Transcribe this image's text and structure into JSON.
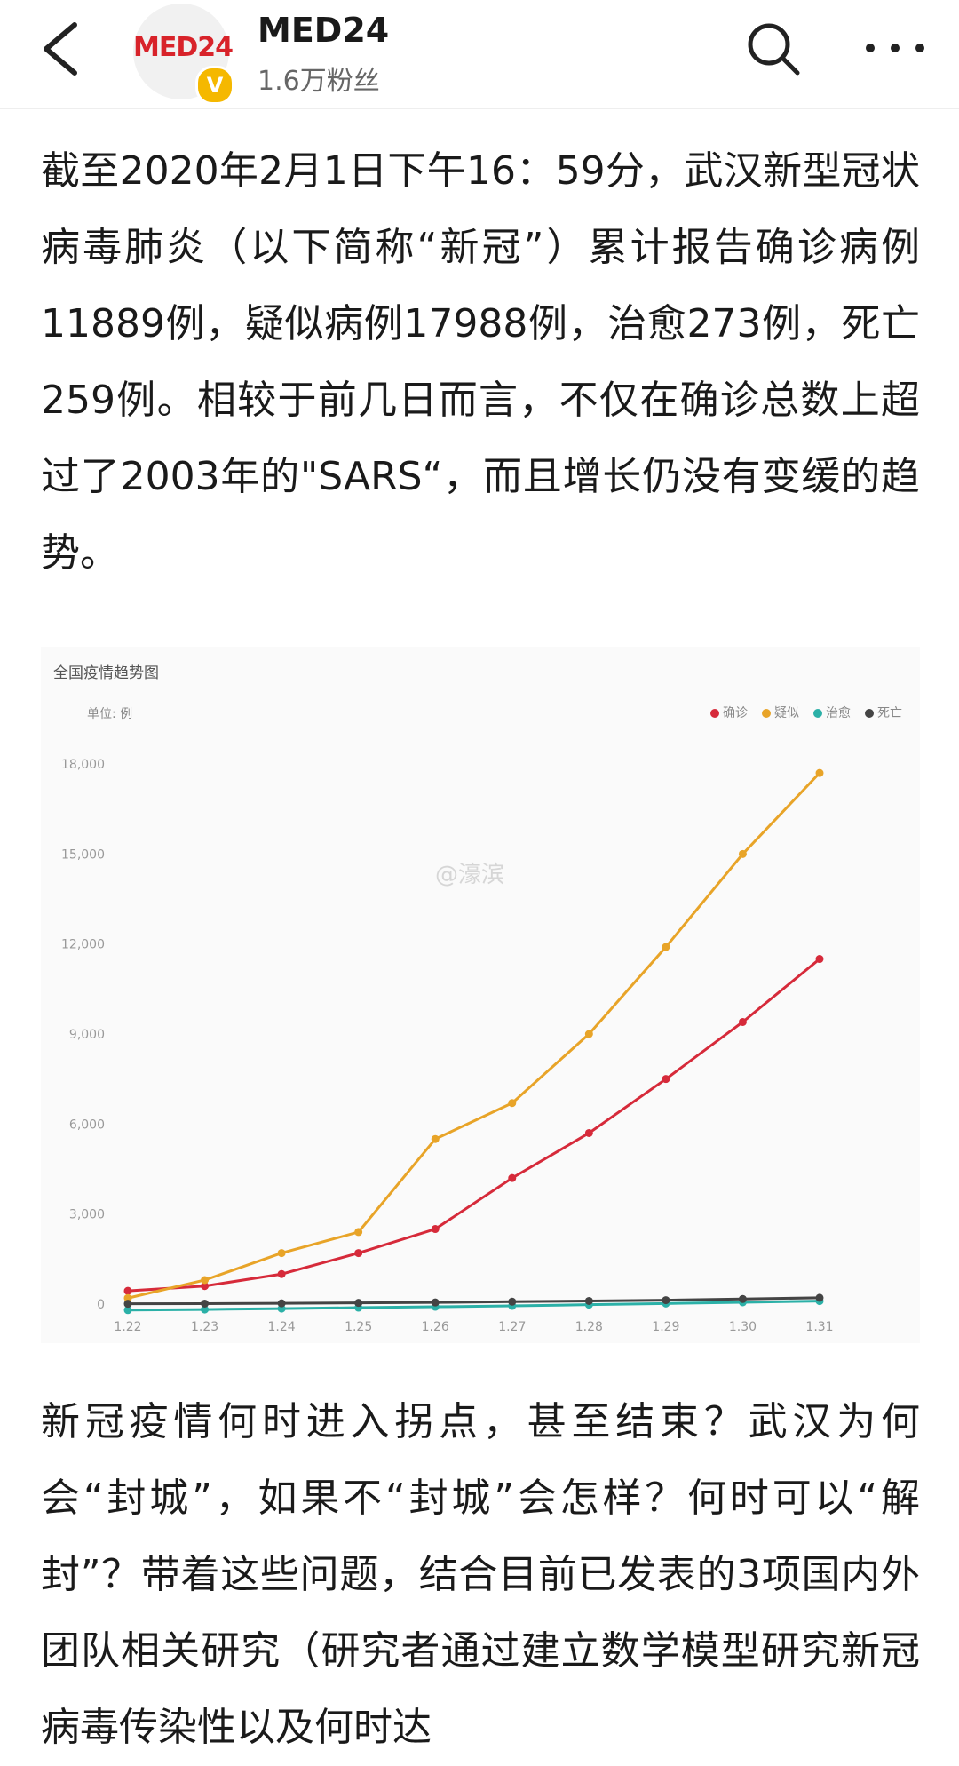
{
  "header": {
    "name": "MED24",
    "fans": "1.6万粉丝",
    "avatar_logo": "MED24",
    "verified_mark": "V"
  },
  "article": {
    "paragraph1": "截至2020年2月1日下午16：59分，武汉新型冠状病毒肺炎（以下简称“新冠”）累计报告确诊病例11889例，疑似病例17988例，治愈273例，死亡259例。相较于前几日而言，不仅在确诊总数上超过了2003年的\"SARS“，而且增长仍没有变缓的趋势。",
    "paragraph2": "新冠疫情何时进入拐点，甚至结束？武汉为何会“封城”，如果不“封城”会怎样？何时可以“解封”？带着这些问题，结合目前已发表的3项国内外团队相关研究（研究者通过建立数学模型研究新冠病毒传染性以及何时达"
  },
  "chart_data": {
    "type": "line",
    "title": "全国疫情趋势图",
    "unit": "单位: 例",
    "watermark": "@濠滨",
    "categories": [
      "1.22",
      "1.23",
      "1.24",
      "1.25",
      "1.26",
      "1.27",
      "1.28",
      "1.29",
      "1.30",
      "1.31"
    ],
    "ylim": [
      0,
      18000
    ],
    "yticks": [
      0,
      3000,
      6000,
      9000,
      12000,
      15000,
      18000
    ],
    "ytick_labels": [
      "0",
      "3,000",
      "6,000",
      "9,000",
      "12,000",
      "15,000",
      "18,000"
    ],
    "legend_position": "top-right",
    "grid": false,
    "series": [
      {
        "name": "确诊",
        "color": "#d62a3a",
        "values": [
          440,
          600,
          1000,
          1700,
          2500,
          4200,
          5700,
          7500,
          9400,
          11500
        ]
      },
      {
        "name": "疑似",
        "color": "#e8a428",
        "values": [
          200,
          800,
          1700,
          2400,
          5500,
          6700,
          9000,
          11900,
          15000,
          17700
        ]
      },
      {
        "name": "治愈",
        "color": "#2bb0a7",
        "values": [
          -200,
          -180,
          -150,
          -120,
          -90,
          -60,
          -20,
          20,
          60,
          100
        ]
      },
      {
        "name": "死亡",
        "color": "#444444",
        "values": [
          10,
          15,
          25,
          40,
          55,
          80,
          105,
          130,
          170,
          210
        ]
      }
    ]
  }
}
